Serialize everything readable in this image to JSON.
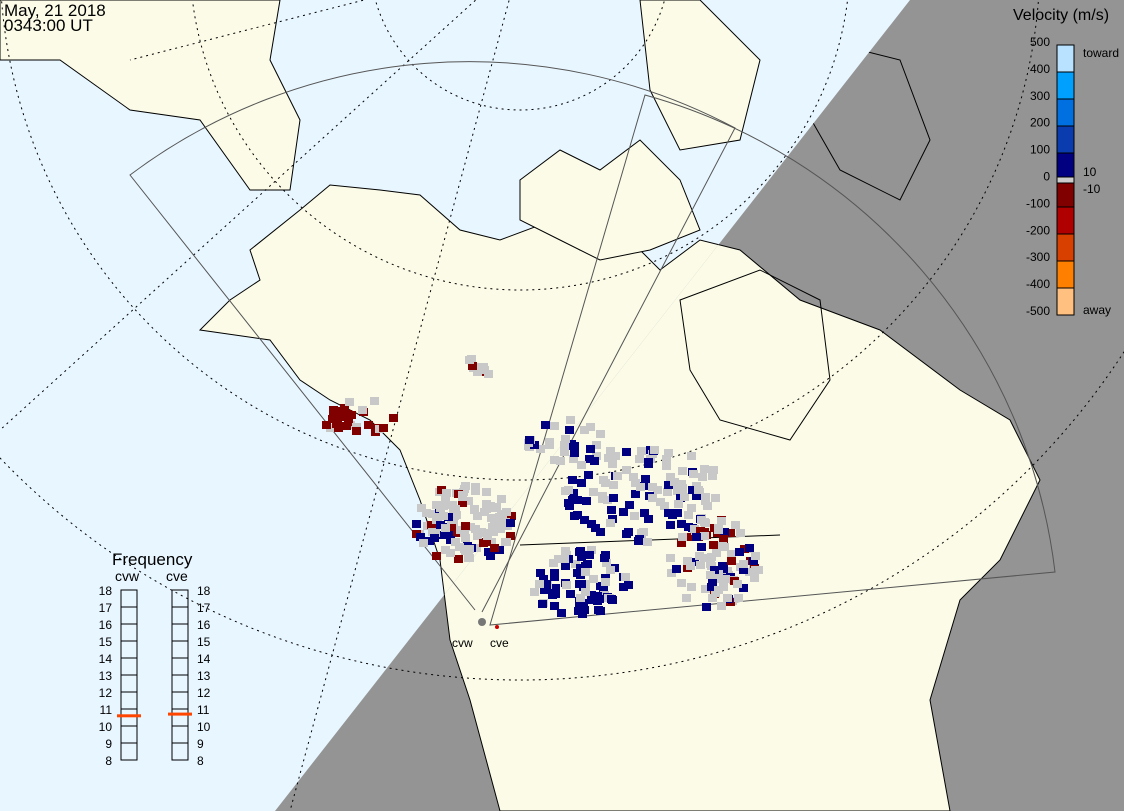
{
  "header": {
    "date": "May, 21 2018",
    "time": "0343:00 UT"
  },
  "radars": [
    {
      "code": "cvw",
      "frequency_mhz": 10.6
    },
    {
      "code": "cve",
      "frequency_mhz": 10.7
    }
  ],
  "frequency_panel": {
    "title": "Frequency",
    "ticks": [
      "18",
      "17",
      "16",
      "15",
      "14",
      "13",
      "12",
      "11",
      "10",
      "9",
      "8"
    ],
    "marker_color": "#ff4500"
  },
  "velocity_scale": {
    "title": "Velocity (m/s)",
    "ticks": [
      "500",
      "400",
      "300",
      "200",
      "100",
      "0",
      "-100",
      "-200",
      "-300",
      "-400",
      "-500"
    ],
    "label_toward": "toward",
    "label_away": "away",
    "label_pos_threshold": "10",
    "label_neg_threshold": "-10",
    "colors": [
      "#b8e2ff",
      "#00a0ff",
      "#0070e0",
      "#0a3cb0",
      "#000080",
      "#cccccc",
      "#800000",
      "#b00000",
      "#d84000",
      "#ff8000",
      "#ffc080"
    ]
  },
  "colors": {
    "ocean": "#e8f6ff",
    "land_day": "#fbfbe8",
    "night": "#949494",
    "ground_scatter": "#c8c8c8"
  }
}
